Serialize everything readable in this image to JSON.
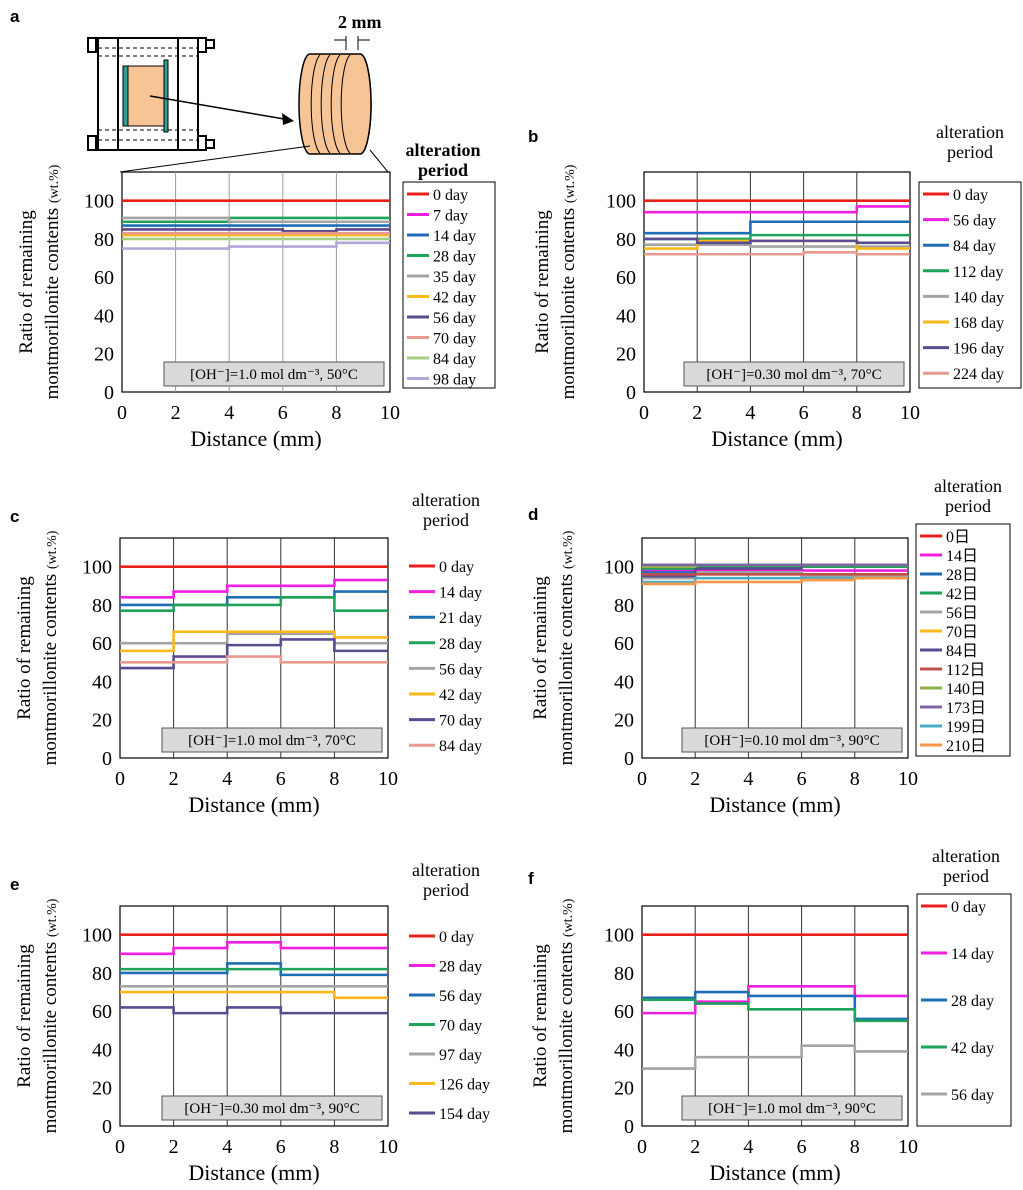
{
  "figure": {
    "diagram_dim_label": "2 mm"
  },
  "chart_data": [
    {
      "panel": "a",
      "type": "line",
      "xlabel": "Distance (mm)",
      "ylabel_line1": "Ratio of  remaining",
      "ylabel_line2": "montmorillonite contents",
      "ylabel_unit": "(wt.%)",
      "xticks": [
        "0",
        "2",
        "4",
        "6",
        "8",
        "10"
      ],
      "yticks": [
        "0",
        "20",
        "40",
        "60",
        "80",
        "100"
      ],
      "xlim": [
        0,
        10
      ],
      "ylim": [
        0,
        115
      ],
      "grid": "vertical",
      "legend_title": [
        "alteration",
        "period"
      ],
      "legend_title_bold": true,
      "legend_box": true,
      "condition": "[OH⁻]=1.0 mol dm⁻³, 50°C",
      "x_edges": [
        0,
        2,
        4,
        6,
        8,
        10
      ],
      "series": [
        {
          "name": "0 day",
          "color": "#e8201c",
          "values": [
            100,
            100,
            100,
            100,
            100
          ]
        },
        {
          "name": "7 day",
          "color": "#f01fe0",
          "values": [
            89,
            89,
            89,
            89,
            89
          ]
        },
        {
          "name": "14 day",
          "color": "#1f6db5",
          "values": [
            87,
            87,
            87,
            87,
            87
          ]
        },
        {
          "name": "28 day",
          "color": "#1fa25a",
          "values": [
            89,
            89,
            91,
            91,
            91
          ]
        },
        {
          "name": "35 day",
          "color": "#a4a4a4",
          "values": [
            91,
            91,
            89,
            89,
            89
          ]
        },
        {
          "name": "42 day",
          "color": "#fbb81b",
          "values": [
            82,
            82,
            82,
            82,
            82
          ]
        },
        {
          "name": "56 day",
          "color": "#5a4a8f",
          "values": [
            85,
            85,
            85,
            84,
            85
          ]
        },
        {
          "name": "70 day",
          "color": "#e69a90",
          "values": [
            83,
            83,
            83,
            83,
            83
          ]
        },
        {
          "name": "84 day",
          "color": "#a6cf86",
          "values": [
            80,
            80,
            80,
            80,
            80
          ]
        },
        {
          "name": "98 day",
          "color": "#b3a6d9",
          "values": [
            75,
            75,
            76,
            76,
            78
          ]
        }
      ]
    },
    {
      "panel": "b",
      "type": "line",
      "xlabel": "Distance (mm)",
      "ylabel_line1": "Ratio of  remaining",
      "ylabel_line2": "montmorillonite contents",
      "ylabel_unit": "(wt.%)",
      "xticks": [
        "0",
        "2",
        "4",
        "6",
        "8",
        "10"
      ],
      "yticks": [
        "0",
        "20",
        "40",
        "60",
        "80",
        "100"
      ],
      "xlim": [
        0,
        10
      ],
      "ylim": [
        0,
        115
      ],
      "grid": "vertical",
      "legend_title": [
        "alteration",
        "period"
      ],
      "legend_title_bold": false,
      "legend_box": true,
      "condition": "[OH⁻]=0.30 mol dm⁻³, 70°C",
      "x_edges": [
        0,
        2,
        4,
        6,
        8,
        10
      ],
      "series": [
        {
          "name": "0 day",
          "color": "#e8201c",
          "values": [
            100,
            100,
            100,
            100,
            100
          ]
        },
        {
          "name": "56 day",
          "color": "#f01fe0",
          "values": [
            94,
            94,
            94,
            94,
            97
          ]
        },
        {
          "name": "84 day",
          "color": "#1f6db5",
          "values": [
            83,
            83,
            89,
            89,
            89
          ]
        },
        {
          "name": "112 day",
          "color": "#1fa25a",
          "values": [
            80,
            80,
            82,
            82,
            82
          ]
        },
        {
          "name": "140 day",
          "color": "#a4a4a4",
          "values": [
            77,
            77,
            76,
            76,
            76
          ]
        },
        {
          "name": "168 day",
          "color": "#fbb81b",
          "values": [
            75,
            79,
            79,
            79,
            75
          ]
        },
        {
          "name": "196 day",
          "color": "#5a4a8f",
          "values": [
            80,
            78,
            79,
            79,
            78
          ]
        },
        {
          "name": "224 day",
          "color": "#e69a90",
          "values": [
            72,
            72,
            72,
            73,
            72
          ]
        }
      ]
    },
    {
      "panel": "c",
      "type": "line",
      "xlabel": "Distance (mm)",
      "ylabel_line1": "Ratio of  remaining",
      "ylabel_line2": "montmorillonite contents",
      "ylabel_unit": "(wt.%)",
      "xticks": [
        "0",
        "2",
        "4",
        "6",
        "8",
        "10"
      ],
      "yticks": [
        "0",
        "20",
        "40",
        "60",
        "80",
        "100"
      ],
      "xlim": [
        0,
        10
      ],
      "ylim": [
        0,
        115
      ],
      "grid": "vertical",
      "legend_title": [
        "alteration",
        "period"
      ],
      "legend_title_bold": false,
      "legend_box": false,
      "condition": "[OH⁻]=1.0 mol dm⁻³, 70°C",
      "x_edges": [
        0,
        2,
        4,
        6,
        8,
        10
      ],
      "series": [
        {
          "name": "0 day",
          "color": "#e8201c",
          "values": [
            100,
            100,
            100,
            100,
            100
          ]
        },
        {
          "name": "14 day",
          "color": "#f01fe0",
          "values": [
            84,
            87,
            90,
            90,
            93
          ]
        },
        {
          "name": "21 day",
          "color": "#1f6db5",
          "values": [
            80,
            80,
            84,
            84,
            87
          ]
        },
        {
          "name": "28 day",
          "color": "#1fa25a",
          "values": [
            77,
            80,
            80,
            84,
            77
          ]
        },
        {
          "name": "56 day",
          "color": "#a4a4a4",
          "values": [
            60,
            60,
            65,
            65,
            60
          ]
        },
        {
          "name": "42 day",
          "color": "#fbb81b",
          "values": [
            56,
            66,
            66,
            66,
            63
          ]
        },
        {
          "name": "70 day",
          "color": "#5a4a8f",
          "values": [
            47,
            53,
            59,
            62,
            56
          ]
        },
        {
          "name": "84 day",
          "color": "#e69a90",
          "values": [
            50,
            50,
            53,
            50,
            50
          ]
        }
      ]
    },
    {
      "panel": "d",
      "type": "line",
      "xlabel": "Distance (mm)",
      "ylabel_line1": "Ratio of  remaining",
      "ylabel_line2": "montmorillonite contents",
      "ylabel_unit": "(wt.%)",
      "xticks": [
        "0",
        "2",
        "4",
        "6",
        "8",
        "10"
      ],
      "yticks": [
        "0",
        "20",
        "40",
        "60",
        "80",
        "100"
      ],
      "xlim": [
        0,
        10
      ],
      "ylim": [
        0,
        115
      ],
      "grid": "vertical",
      "legend_title": [
        "alteration",
        "period"
      ],
      "legend_title_bold": false,
      "legend_box": true,
      "condition": "[OH⁻]=0.10 mol dm⁻³, 90°C",
      "x_edges": [
        0,
        2,
        4,
        6,
        8,
        10
      ],
      "series": [
        {
          "name": "0日",
          "color": "#e8201c",
          "values": [
            100,
            100,
            100,
            100,
            100
          ]
        },
        {
          "name": "14日",
          "color": "#f01fe0",
          "values": [
            98,
            98,
            98,
            98,
            98
          ]
        },
        {
          "name": "28日",
          "color": "#1f6db5",
          "values": [
            97,
            97,
            97,
            95,
            95
          ]
        },
        {
          "name": "42日",
          "color": "#1fa25a",
          "values": [
            99,
            100,
            100,
            100,
            100
          ]
        },
        {
          "name": "56日",
          "color": "#a4a4a4",
          "values": [
            94,
            97,
            97,
            95,
            95
          ]
        },
        {
          "name": "70日",
          "color": "#fbb81b",
          "values": [
            96,
            96,
            96,
            96,
            96
          ]
        },
        {
          "name": "84日",
          "color": "#5a4a8f",
          "values": [
            95,
            99,
            99,
            101,
            101
          ]
        },
        {
          "name": "112日",
          "color": "#c0504d",
          "values": [
            96,
            96,
            96,
            96,
            96
          ]
        },
        {
          "name": "140日",
          "color": "#8fb24a",
          "values": [
            100,
            101,
            101,
            101,
            101
          ]
        },
        {
          "name": "173日",
          "color": "#8064a2",
          "values": [
            101,
            101,
            101,
            101,
            101
          ]
        },
        {
          "name": "199日",
          "color": "#4bacc6",
          "values": [
            92,
            94,
            94,
            94,
            94
          ]
        },
        {
          "name": "210日",
          "color": "#f79646",
          "values": [
            91,
            92,
            92,
            93,
            94
          ]
        }
      ]
    },
    {
      "panel": "e",
      "type": "line",
      "xlabel": "Distance (mm)",
      "ylabel_line1": "Ratio of  remaining",
      "ylabel_line2": "montmorillonite contents",
      "ylabel_unit": "(wt.%)",
      "xticks": [
        "0",
        "2",
        "4",
        "6",
        "8",
        "10"
      ],
      "yticks": [
        "0",
        "20",
        "40",
        "60",
        "80",
        "100"
      ],
      "xlim": [
        0,
        10
      ],
      "ylim": [
        0,
        115
      ],
      "grid": "vertical",
      "legend_title": [
        "alteration",
        "period"
      ],
      "legend_title_bold": false,
      "legend_box": false,
      "condition": "[OH⁻]=0.30 mol dm⁻³, 90°C",
      "x_edges": [
        0,
        2,
        4,
        6,
        8,
        10
      ],
      "series": [
        {
          "name": "0 day",
          "color": "#e8201c",
          "values": [
            100,
            100,
            100,
            100,
            100
          ]
        },
        {
          "name": "28 day",
          "color": "#f01fe0",
          "values": [
            90,
            93,
            96,
            93,
            93
          ]
        },
        {
          "name": "56 day",
          "color": "#1f6db5",
          "values": [
            80,
            80,
            85,
            79,
            79
          ]
        },
        {
          "name": "70 day",
          "color": "#1fa25a",
          "values": [
            82,
            82,
            82,
            82,
            82
          ]
        },
        {
          "name": "97 day",
          "color": "#a4a4a4",
          "values": [
            73,
            73,
            73,
            73,
            73
          ]
        },
        {
          "name": "126 day",
          "color": "#fbb81b",
          "values": [
            70,
            70,
            70,
            70,
            67
          ]
        },
        {
          "name": "154 day",
          "color": "#5a4a8f",
          "values": [
            62,
            59,
            62,
            59,
            59
          ]
        }
      ]
    },
    {
      "panel": "f",
      "type": "line",
      "xlabel": "Distance (mm)",
      "ylabel_line1": "Ratio of  remaining",
      "ylabel_line2": "montmorillonite contents",
      "ylabel_unit": "(wt.%)",
      "xticks": [
        "0",
        "2",
        "4",
        "6",
        "8",
        "10"
      ],
      "yticks": [
        "0",
        "20",
        "40",
        "60",
        "80",
        "100"
      ],
      "xlim": [
        0,
        10
      ],
      "ylim": [
        0,
        115
      ],
      "grid": "vertical",
      "legend_title": [
        "alteration",
        "period"
      ],
      "legend_title_bold": false,
      "legend_box": true,
      "condition": "[OH⁻]=1.0 mol dm⁻³, 90°C",
      "x_edges": [
        0,
        2,
        4,
        6,
        8,
        10
      ],
      "series": [
        {
          "name": "0 day",
          "color": "#e8201c",
          "values": [
            100,
            100,
            100,
            100,
            100
          ]
        },
        {
          "name": "14 day",
          "color": "#f01fe0",
          "values": [
            59,
            65,
            73,
            73,
            68
          ]
        },
        {
          "name": "28 day",
          "color": "#1f6db5",
          "values": [
            67,
            70,
            68,
            68,
            56
          ]
        },
        {
          "name": "42 day",
          "color": "#1fa25a",
          "values": [
            66,
            64,
            61,
            61,
            55
          ]
        },
        {
          "name": "56 day",
          "color": "#a4a4a4",
          "values": [
            30,
            36,
            36,
            42,
            39
          ]
        }
      ]
    }
  ]
}
